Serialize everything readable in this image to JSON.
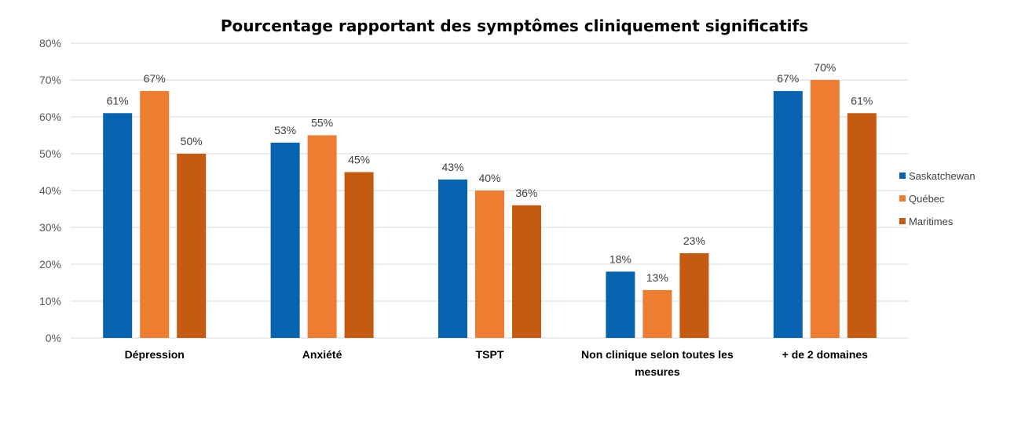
{
  "chart_data": {
    "type": "bar",
    "title": "Pourcentage rapportant des symptômes cliniquement significatifs",
    "categories": [
      [
        "Dépression"
      ],
      [
        "Anxiété"
      ],
      [
        "TSPT"
      ],
      [
        "Non clinique selon toutes les",
        "mesures"
      ],
      [
        "+ de 2 domaines"
      ]
    ],
    "series": [
      {
        "name": "Saskatchewan",
        "color": "#0563b0",
        "values": [
          61,
          53,
          43,
          18,
          67
        ]
      },
      {
        "name": "Québec",
        "color": "#ed7d31",
        "values": [
          67,
          55,
          40,
          13,
          70
        ]
      },
      {
        "name": "Maritimes",
        "color": "#c55a11",
        "values": [
          50,
          45,
          36,
          23,
          61
        ]
      }
    ],
    "ylim": [
      0,
      80
    ],
    "yticks": [
      "0%",
      "10%",
      "20%",
      "30%",
      "40%",
      "50%",
      "60%",
      "70%",
      "80%"
    ],
    "value_suffix": "%",
    "grid": true,
    "legend_position": "right"
  }
}
